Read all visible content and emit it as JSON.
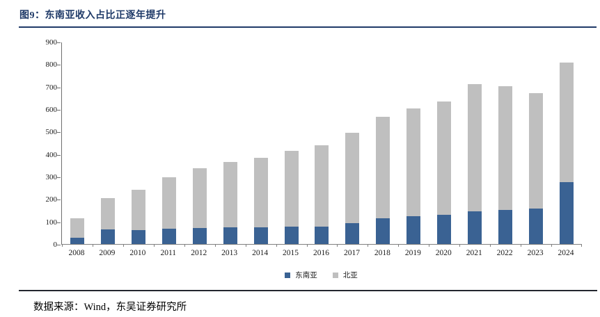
{
  "page": {
    "title": "图9：东南亚收入占比正逐年提升",
    "source_note": "数据来源：Wind，东吴证券研究所"
  },
  "chart_data": {
    "type": "bar",
    "stacked": true,
    "title": "图9：东南亚收入占比正逐年提升",
    "xlabel": "",
    "ylabel": "",
    "ylim": [
      0,
      900
    ],
    "ytick_step": 100,
    "grid": false,
    "legend_position": "bottom-center",
    "categories": [
      "2008",
      "2009",
      "2010",
      "2011",
      "2012",
      "2013",
      "2014",
      "2015",
      "2016",
      "2017",
      "2018",
      "2019",
      "2020",
      "2021",
      "2022",
      "2023",
      "2024"
    ],
    "series": [
      {
        "name": "东南亚",
        "color": "#3a6293",
        "values": [
          27,
          64,
          63,
          68,
          72,
          76,
          76,
          77,
          78,
          93,
          115,
          125,
          130,
          146,
          153,
          157,
          277
        ]
      },
      {
        "name": "北亚",
        "color": "#bfbfbf",
        "values": [
          87,
          140,
          178,
          231,
          266,
          290,
          308,
          339,
          362,
          405,
          453,
          479,
          507,
          568,
          552,
          515,
          533
        ]
      }
    ],
    "totals": [
      114,
      204,
      241,
      299,
      338,
      366,
      384,
      416,
      440,
      498,
      568,
      604,
      637,
      714,
      705,
      672,
      810
    ]
  },
  "colors": {
    "title_navy": "#1f3a68",
    "rule_bottom": "#23262e",
    "axis_line": "#6e6e6e",
    "southeast_blue": "#3a6293",
    "north_gray": "#bfbfbf"
  }
}
